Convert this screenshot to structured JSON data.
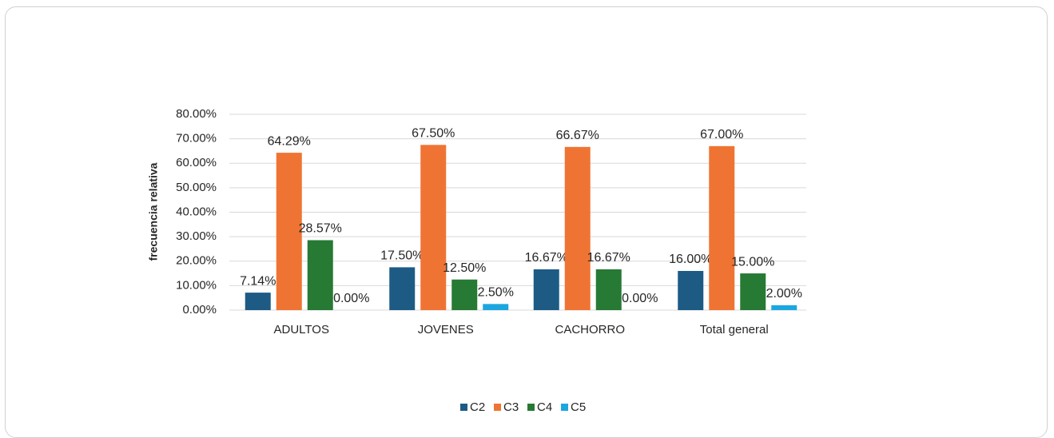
{
  "chart_data": {
    "type": "bar",
    "y_label": "frecuencia relativa",
    "categories": [
      "ADULTOS",
      "JOVENES",
      "CACHORRO",
      "Total general"
    ],
    "series": [
      {
        "name": "C2",
        "color": "#1d5b85",
        "values": [
          7.14,
          17.5,
          16.67,
          16
        ],
        "value_labels": [
          "7.14%",
          "17.50%",
          "16.67%",
          "16.00%"
        ]
      },
      {
        "name": "C3",
        "color": "#ef7433",
        "values": [
          64.29,
          67.5,
          66.67,
          67
        ],
        "value_labels": [
          "64.29%",
          "67.50%",
          "66.67%",
          "67.00%"
        ]
      },
      {
        "name": "C4",
        "color": "#267a34",
        "values": [
          28.57,
          12.5,
          16.67,
          15
        ],
        "value_labels": [
          "28.57%",
          "12.50%",
          "16.67%",
          "15.00%"
        ]
      },
      {
        "name": "C5",
        "color": "#1ca6e0",
        "values": [
          0,
          2.5,
          0,
          2
        ],
        "value_labels": [
          "0.00%",
          "2.50%",
          "0.00%",
          "2.00%"
        ]
      }
    ],
    "ylim": [
      0,
      80
    ],
    "yticks": [
      {
        "value": 0,
        "label": "0.00%"
      },
      {
        "value": 10,
        "label": "10.00%"
      },
      {
        "value": 20,
        "label": "20.00%"
      },
      {
        "value": 30,
        "label": "30.00%"
      },
      {
        "value": 40,
        "label": "40.00%"
      },
      {
        "value": 50,
        "label": "50.00%"
      },
      {
        "value": 60,
        "label": "60.00%"
      },
      {
        "value": 70,
        "label": "70.00%"
      },
      {
        "value": 80,
        "label": "80.00%"
      }
    ],
    "grid": true,
    "legend": "bottom"
  }
}
